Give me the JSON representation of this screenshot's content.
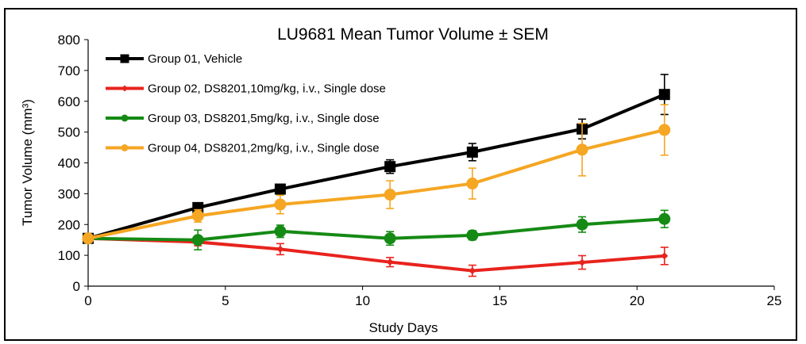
{
  "chart_data": {
    "type": "line",
    "title": "LU9681 Mean Tumor Volume ± SEM",
    "xlabel": "Study Days",
    "ylabel": "Tumor Volume (mm³)",
    "xlim": [
      0,
      25
    ],
    "ylim": [
      0,
      800
    ],
    "xticks": [
      0,
      5,
      10,
      15,
      20,
      25
    ],
    "yticks": [
      0,
      100,
      200,
      300,
      400,
      500,
      600,
      700,
      800
    ],
    "grid": false,
    "legend_position": "top-left",
    "series": [
      {
        "name": "Group 01, Vehicle",
        "color": "#000000",
        "marker": "square",
        "x": [
          0,
          4,
          7,
          11,
          14,
          18,
          21
        ],
        "y": [
          155,
          255,
          315,
          388,
          435,
          510,
          622
        ],
        "sem": [
          8,
          12,
          15,
          22,
          28,
          32,
          65
        ]
      },
      {
        "name": "Group 02, DS8201,10mg/kg, i.v., Single dose",
        "color": "#e8231d",
        "marker": "diamond",
        "x": [
          0,
          4,
          7,
          11,
          14,
          18,
          21
        ],
        "y": [
          155,
          143,
          120,
          78,
          50,
          77,
          98
        ],
        "sem": [
          8,
          12,
          18,
          15,
          18,
          22,
          28
        ]
      },
      {
        "name": "Group 03, DS8201,5mg/kg, i.v., Single dose",
        "color": "#158a15",
        "marker": "circle",
        "x": [
          0,
          4,
          7,
          11,
          14,
          18,
          21
        ],
        "y": [
          155,
          150,
          178,
          155,
          165,
          200,
          218
        ],
        "sem": [
          8,
          32,
          20,
          22,
          15,
          25,
          28
        ]
      },
      {
        "name": "Group 04, DS8201,2mg/kg, i.v., Single dose",
        "color": "#f5a623",
        "marker": "circle",
        "x": [
          0,
          4,
          7,
          11,
          14,
          18,
          21
        ],
        "y": [
          155,
          228,
          265,
          297,
          333,
          443,
          507
        ],
        "sem": [
          8,
          20,
          30,
          45,
          50,
          85,
          82
        ]
      }
    ]
  }
}
